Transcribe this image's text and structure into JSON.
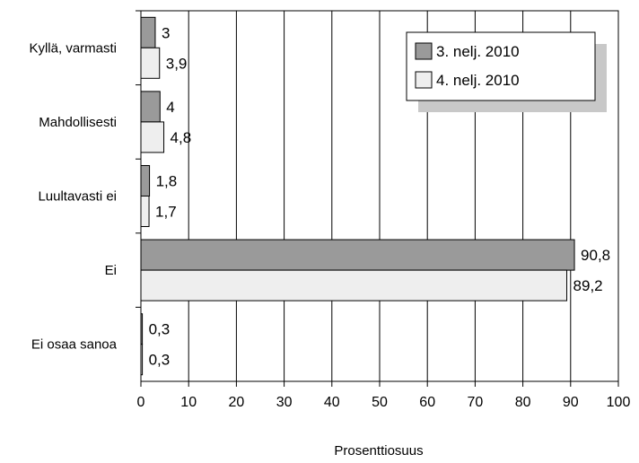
{
  "chart_data": {
    "type": "bar",
    "orientation": "horizontal",
    "categories": [
      "Kyllä, varmasti",
      "Mahdollisesti",
      "Luultavasti ei",
      "Ei",
      "Ei osaa sanoa"
    ],
    "series": [
      {
        "name": "3. nelj. 2010",
        "values": [
          3,
          4,
          1.8,
          90.8,
          0.3
        ],
        "value_labels": [
          "3",
          "4",
          "1,8",
          "90,8",
          "0,3"
        ],
        "color": "#9a9a9a"
      },
      {
        "name": "4. nelj. 2010",
        "values": [
          3.9,
          4.8,
          1.7,
          89.2,
          0.3
        ],
        "value_labels": [
          "3,9",
          "4,8",
          "1,7",
          "89,2",
          "0,3"
        ],
        "color": "#eeeeee"
      }
    ],
    "xlabel": "Prosenttiosuus",
    "ylabel": "",
    "xlim": [
      0,
      100
    ],
    "xticks": [
      0,
      10,
      20,
      30,
      40,
      50,
      60,
      70,
      80,
      90,
      100
    ],
    "grid": true,
    "legend": "top-right"
  }
}
